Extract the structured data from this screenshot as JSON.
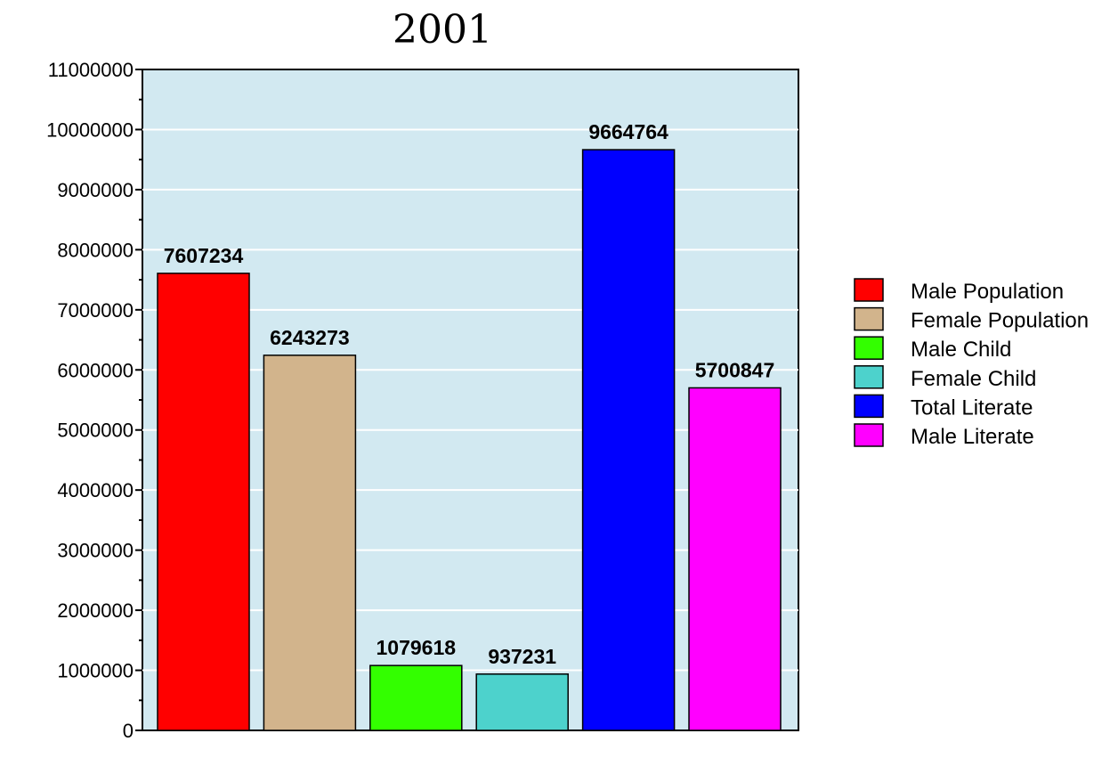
{
  "chart_data": {
    "type": "bar",
    "title": "2001",
    "xlabel": "",
    "ylabel": "",
    "ylim": [
      0,
      11000000
    ],
    "yticks": [
      0,
      1000000,
      2000000,
      3000000,
      4000000,
      5000000,
      6000000,
      7000000,
      8000000,
      9000000,
      10000000,
      11000000
    ],
    "grid": true,
    "legend_position": "right",
    "plot_background": "#d2e9f1",
    "categories": [
      "Male Population",
      "Female Population",
      "Male Child",
      "Female Child",
      "Total Literate",
      "Male Literate"
    ],
    "series": [
      {
        "values": [
          7607234,
          6243273,
          1079618,
          937231,
          9664764,
          5700847
        ],
        "data_labels": [
          "7607234",
          "6243273",
          "1079618",
          "937231",
          "9664764",
          "5700847"
        ],
        "colors": [
          "#ff0000",
          "#d2b48c",
          "#33ff00",
          "#4dd2cc",
          "#0000ff",
          "#ff00ff"
        ]
      }
    ],
    "legend": [
      {
        "label": "Male Population",
        "color": "#ff0000"
      },
      {
        "label": "Female Population",
        "color": "#d2b48c"
      },
      {
        "label": "Male Child",
        "color": "#33ff00"
      },
      {
        "label": "Female Child",
        "color": "#4dd2cc"
      },
      {
        "label": "Total Literate",
        "color": "#0000ff"
      },
      {
        "label": "Male Literate",
        "color": "#ff00ff"
      }
    ]
  }
}
